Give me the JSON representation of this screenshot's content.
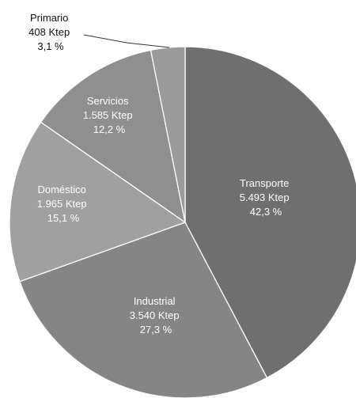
{
  "chart_data": {
    "type": "pie",
    "unit": "Ktep",
    "slices": [
      {
        "label": "Transporte",
        "value_text": "5.493 Ktep",
        "percent_text": "42,3 %",
        "value": 5493,
        "percent": 42.3,
        "color": "#6f6f6f"
      },
      {
        "label": "Industrial",
        "value_text": "3.540 Ktep",
        "percent_text": "27,3 %",
        "value": 3540,
        "percent": 27.3,
        "color": "#858585"
      },
      {
        "label": "Doméstico",
        "value_text": "1.965 Ktep",
        "percent_text": "15,1 %",
        "value": 1965,
        "percent": 15.1,
        "color": "#a0a0a0"
      },
      {
        "label": "Servicios",
        "value_text": "1.585 Ktep",
        "percent_text": "12,2 %",
        "value": 1585,
        "percent": 12.2,
        "color": "#8f8f8f"
      },
      {
        "label": "Primario",
        "value_text": "408 Ktep",
        "percent_text": "3,1 %",
        "value": 408,
        "percent": 3.1,
        "color": "#9a9a9a"
      }
    ]
  }
}
